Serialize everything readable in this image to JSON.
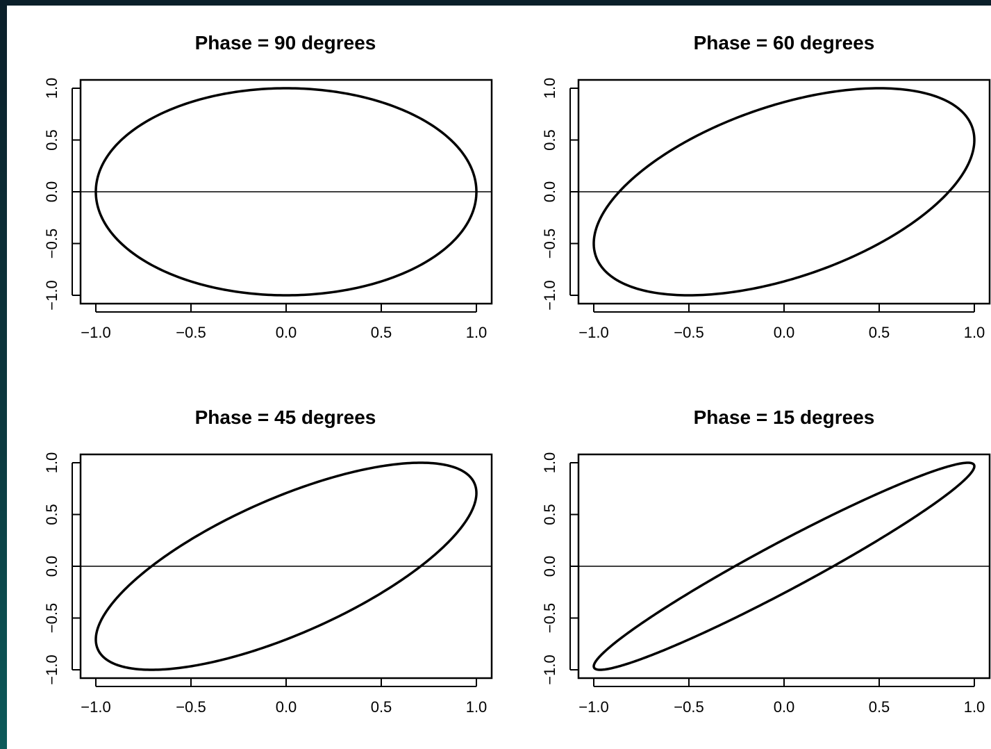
{
  "chart_data": [
    {
      "type": "line",
      "title": "Phase = 90 degrees",
      "phase_degrees": 90,
      "xlim": [
        -1.0,
        1.0
      ],
      "ylim": [
        -1.0,
        1.0
      ],
      "x_ticks": [
        "−1.0",
        "−0.5",
        "0.0",
        "0.5",
        "1.0"
      ],
      "y_ticks": [
        "−1.0",
        "−0.5",
        "0.0",
        "0.5",
        "1.0"
      ],
      "x_tick_values": [
        -1.0,
        -0.5,
        0.0,
        0.5,
        1.0
      ],
      "y_tick_values": [
        -1.0,
        -0.5,
        0.0,
        0.5,
        1.0
      ],
      "reference_line_y": 0.0,
      "curve": "x = sin(t), y = sin(t + phase)"
    },
    {
      "type": "line",
      "title": "Phase = 60 degrees",
      "phase_degrees": 60,
      "xlim": [
        -1.0,
        1.0
      ],
      "ylim": [
        -1.0,
        1.0
      ],
      "x_ticks": [
        "−1.0",
        "−0.5",
        "0.0",
        "0.5",
        "1.0"
      ],
      "y_ticks": [
        "−1.0",
        "−0.5",
        "0.0",
        "0.5",
        "1.0"
      ],
      "x_tick_values": [
        -1.0,
        -0.5,
        0.0,
        0.5,
        1.0
      ],
      "y_tick_values": [
        -1.0,
        -0.5,
        0.0,
        0.5,
        1.0
      ],
      "reference_line_y": 0.0,
      "curve": "x = sin(t), y = sin(t + phase)"
    },
    {
      "type": "line",
      "title": "Phase = 45 degrees",
      "phase_degrees": 45,
      "xlim": [
        -1.0,
        1.0
      ],
      "ylim": [
        -1.0,
        1.0
      ],
      "x_ticks": [
        "−1.0",
        "−0.5",
        "0.0",
        "0.5",
        "1.0"
      ],
      "y_ticks": [
        "−1.0",
        "−0.5",
        "0.0",
        "0.5",
        "1.0"
      ],
      "x_tick_values": [
        -1.0,
        -0.5,
        0.0,
        0.5,
        1.0
      ],
      "y_tick_values": [
        -1.0,
        -0.5,
        0.0,
        0.5,
        1.0
      ],
      "reference_line_y": 0.0,
      "curve": "x = sin(t), y = sin(t + phase)"
    },
    {
      "type": "line",
      "title": "Phase = 15 degrees",
      "phase_degrees": 15,
      "xlim": [
        -1.0,
        1.0
      ],
      "ylim": [
        -1.0,
        1.0
      ],
      "x_ticks": [
        "−1.0",
        "−0.5",
        "0.0",
        "0.5",
        "1.0"
      ],
      "y_ticks": [
        "−1.0",
        "−0.5",
        "0.0",
        "0.5",
        "1.0"
      ],
      "x_tick_values": [
        -1.0,
        -0.5,
        0.0,
        0.5,
        1.0
      ],
      "y_tick_values": [
        -1.0,
        -0.5,
        0.0,
        0.5,
        1.0
      ],
      "reference_line_y": 0.0,
      "curve": "x = sin(t), y = sin(t + phase)"
    }
  ],
  "colors": {
    "background_top": "#0b1f2a",
    "background_bottom": "#0c5a5a",
    "figure_background": "#ffffff",
    "ink": "#000000"
  }
}
